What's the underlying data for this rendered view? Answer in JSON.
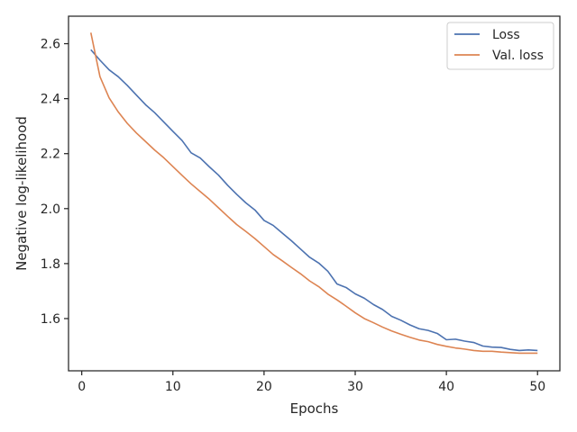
{
  "chart_data": {
    "type": "line",
    "title": "",
    "xlabel": "Epochs",
    "ylabel": "Negative log-likelihood",
    "xlim": [
      -1.45,
      52.45
    ],
    "ylim": [
      1.41,
      2.7
    ],
    "xticks": [
      0,
      10,
      20,
      30,
      40,
      50
    ],
    "yticks": [
      1.6,
      1.8,
      2.0,
      2.2,
      2.4,
      2.6
    ],
    "grid": false,
    "legend_position": "top-right",
    "x": [
      1,
      2,
      3,
      4,
      5,
      6,
      7,
      8,
      9,
      10,
      11,
      12,
      13,
      14,
      15,
      16,
      17,
      18,
      19,
      20,
      21,
      22,
      23,
      24,
      25,
      26,
      27,
      28,
      29,
      30,
      31,
      32,
      33,
      34,
      35,
      36,
      37,
      38,
      39,
      40,
      41,
      42,
      43,
      44,
      45,
      46,
      47,
      48,
      49,
      50
    ],
    "series": [
      {
        "name": "Loss",
        "color": "#4c72b0",
        "values": [
          2.578,
          2.54,
          2.505,
          2.48,
          2.448,
          2.413,
          2.378,
          2.349,
          2.315,
          2.281,
          2.248,
          2.203,
          2.184,
          2.152,
          2.122,
          2.085,
          2.052,
          2.021,
          1.995,
          1.957,
          1.939,
          1.911,
          1.883,
          1.853,
          1.823,
          1.802,
          1.772,
          1.726,
          1.713,
          1.69,
          1.674,
          1.651,
          1.633,
          1.608,
          1.594,
          1.577,
          1.563,
          1.557,
          1.546,
          1.523,
          1.525,
          1.518,
          1.513,
          1.5,
          1.496,
          1.495,
          1.488,
          1.484,
          1.486,
          1.484
        ]
      },
      {
        "name": "Val. loss",
        "color": "#dd8452",
        "values": [
          2.64,
          2.48,
          2.403,
          2.352,
          2.31,
          2.275,
          2.244,
          2.213,
          2.185,
          2.153,
          2.121,
          2.09,
          2.062,
          2.034,
          2.003,
          1.972,
          1.942,
          1.917,
          1.891,
          1.862,
          1.833,
          1.81,
          1.786,
          1.763,
          1.737,
          1.716,
          1.689,
          1.668,
          1.645,
          1.621,
          1.6,
          1.585,
          1.569,
          1.555,
          1.543,
          1.532,
          1.522,
          1.516,
          1.506,
          1.499,
          1.493,
          1.489,
          1.484,
          1.481,
          1.481,
          1.478,
          1.476,
          1.474,
          1.474,
          1.474
        ]
      }
    ]
  },
  "colors": {
    "axes": "#262626",
    "background": "#ffffff"
  }
}
